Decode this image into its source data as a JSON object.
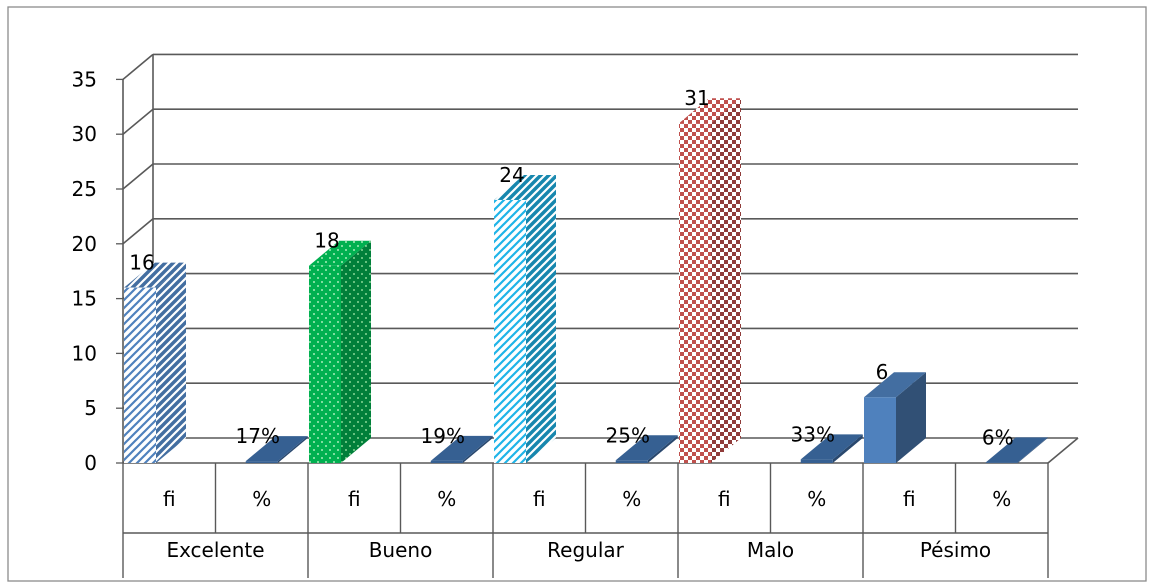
{
  "chart_data": {
    "type": "bar",
    "title": "",
    "xlabel": "",
    "ylabel": "",
    "ylim": [
      0,
      35
    ],
    "ytick_labels": [
      "0",
      "5",
      "10",
      "15",
      "20",
      "25",
      "30",
      "35"
    ],
    "grid": true,
    "legend": "none",
    "groups": [
      {
        "name": "Excelente",
        "sub": [
          {
            "label": "fi",
            "value": 16,
            "data_label": "16"
          },
          {
            "label": "%",
            "value": 0.17,
            "data_label": "17%"
          }
        ]
      },
      {
        "name": "Bueno",
        "sub": [
          {
            "label": "fi",
            "value": 18,
            "data_label": "18"
          },
          {
            "label": "%",
            "value": 0.19,
            "data_label": "19%"
          }
        ]
      },
      {
        "name": "Regular",
        "sub": [
          {
            "label": "fi",
            "value": 24,
            "data_label": "24"
          },
          {
            "label": "%",
            "value": 0.25,
            "data_label": "25%"
          }
        ]
      },
      {
        "name": "Malo",
        "sub": [
          {
            "label": "fi",
            "value": 31,
            "data_label": "31"
          },
          {
            "label": "%",
            "value": 0.33,
            "data_label": "33%"
          }
        ]
      },
      {
        "name": "Pésimo",
        "sub": [
          {
            "label": "fi",
            "value": 6,
            "data_label": "6"
          },
          {
            "label": "%",
            "value": 0.06,
            "data_label": "6%"
          }
        ]
      }
    ],
    "colors": {
      "excelente": "#4f81bd",
      "bueno": "#00b050",
      "regular": "#1fb4e8",
      "malo": "#c0504d",
      "pesimo": "#4f81bd",
      "percent": "#366092",
      "grid": "#595959"
    }
  }
}
